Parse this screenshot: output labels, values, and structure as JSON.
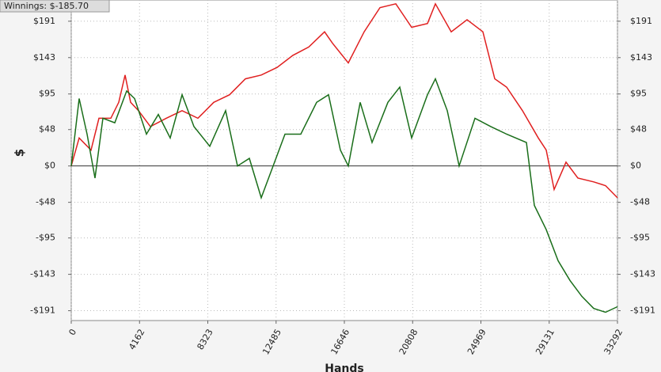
{
  "chart_data": {
    "type": "line",
    "title": "Winnings: $-185.70",
    "y_label": "$",
    "x_label": "Hands",
    "xlim": [
      0,
      33292
    ],
    "xticks": [
      0,
      4162,
      8323,
      12485,
      16646,
      20808,
      24969,
      29131,
      33292
    ],
    "ylim": [
      -204,
      219
    ],
    "yticks": [
      {
        "value": 191,
        "label": "$191"
      },
      {
        "value": 143,
        "label": "$143"
      },
      {
        "value": 95,
        "label": "$95"
      },
      {
        "value": 48,
        "label": "$48"
      },
      {
        "value": 0,
        "label": "$0"
      },
      {
        "value": -48,
        "label": "-$48"
      },
      {
        "value": -95,
        "label": "-$95"
      },
      {
        "value": -143,
        "label": "-$143"
      },
      {
        "value": -191,
        "label": "-$191"
      }
    ],
    "grid": true,
    "series": [
      {
        "color": "#e02020",
        "x": [
          0,
          483,
          1206,
          1689,
          2413,
          2895,
          3281,
          3619,
          4101,
          4825,
          5790,
          6755,
          7720,
          8685,
          9650,
          10615,
          11580,
          12545,
          13510,
          14475,
          15440,
          15923,
          16888,
          17853,
          18818,
          19783,
          20748,
          21713,
          22195,
          23160,
          24125,
          25090,
          25814,
          26538,
          27503,
          28468,
          28950,
          29433,
          30156,
          30880,
          31845,
          32569,
          33292
        ],
        "values": [
          0,
          37,
          21,
          63,
          63,
          84,
          120,
          84,
          73,
          52,
          63,
          73,
          63,
          84,
          94,
          115,
          120,
          130,
          146,
          157,
          177,
          162,
          136,
          177,
          209,
          214,
          183,
          188,
          214,
          177,
          193,
          177,
          115,
          104,
          73,
          37,
          21,
          -31,
          5,
          -16,
          -21,
          -26,
          -42
        ]
      },
      {
        "color": "#1a6e1a",
        "x": [
          0,
          483,
          965,
          1448,
          1930,
          2654,
          3378,
          3860,
          4584,
          5308,
          6031,
          6755,
          7479,
          8444,
          9409,
          10133,
          10856,
          11580,
          12304,
          13028,
          13993,
          14958,
          15681,
          16405,
          16888,
          17611,
          18335,
          19300,
          20024,
          20748,
          21713,
          22195,
          22919,
          23643,
          24608,
          25573,
          26538,
          27744,
          28226,
          28950,
          29674,
          30398,
          31121,
          31845,
          32569,
          33292
        ],
        "values": [
          0,
          89,
          42,
          -16,
          63,
          57,
          99,
          89,
          42,
          68,
          37,
          94,
          52,
          26,
          73,
          0,
          10,
          -42,
          0,
          42,
          42,
          84,
          94,
          21,
          0,
          84,
          31,
          84,
          104,
          37,
          94,
          115,
          73,
          0,
          63,
          52,
          42,
          31,
          -52,
          -84,
          -125,
          -151,
          -172,
          -188,
          -193,
          -185.7
        ]
      }
    ]
  }
}
